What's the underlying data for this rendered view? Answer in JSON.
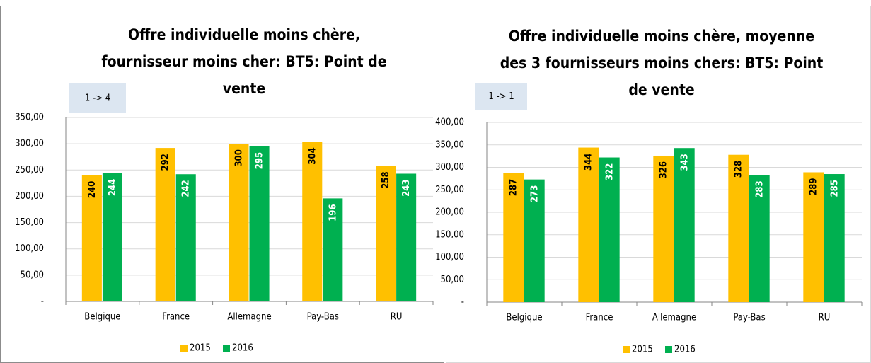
{
  "chart_data": [
    {
      "type": "bar",
      "title": [
        "Offre individuelle moins chère,",
        "fournisseur moins cher: BT5: Point de",
        "vente"
      ],
      "annotation": "1 -> 4",
      "categories": [
        "Belgique",
        "France",
        "Allemagne",
        "Pay-Bas",
        "RU"
      ],
      "series": [
        {
          "name": "2015",
          "color": "#ffc000",
          "values": [
            240,
            292,
            300,
            304,
            258
          ]
        },
        {
          "name": "2016",
          "color": "#00b050",
          "values": [
            244,
            242,
            295,
            196,
            243
          ]
        }
      ],
      "ylim": [
        0,
        350
      ],
      "yticks": [
        {
          "value": 0,
          "label": "-"
        },
        {
          "value": 50,
          "label": "50,00"
        },
        {
          "value": 100,
          "label": "100,00"
        },
        {
          "value": 150,
          "label": "150,00"
        },
        {
          "value": 200,
          "label": "200,00"
        },
        {
          "value": 250,
          "label": "250,00"
        },
        {
          "value": 300,
          "label": "300,00"
        },
        {
          "value": 350,
          "label": "350,00"
        }
      ],
      "grid": true,
      "legend": "bottom"
    },
    {
      "type": "bar",
      "title": [
        "Offre individuelle moins chère, moyenne",
        "des 3 fournisseurs moins chers: BT5: Point",
        "de vente"
      ],
      "annotation": "1 -> 1",
      "categories": [
        "Belgique",
        "France",
        "Allemagne",
        "Pay-Bas",
        "RU"
      ],
      "series": [
        {
          "name": "2015",
          "color": "#ffc000",
          "values": [
            287,
            344,
            326,
            328,
            289
          ]
        },
        {
          "name": "2016",
          "color": "#00b050",
          "values": [
            273,
            322,
            343,
            283,
            285
          ]
        }
      ],
      "ylim": [
        0,
        400
      ],
      "yticks": [
        {
          "value": 0,
          "label": "-"
        },
        {
          "value": 50,
          "label": "50,00"
        },
        {
          "value": 100,
          "label": "100,00"
        },
        {
          "value": 150,
          "label": "150,00"
        },
        {
          "value": 200,
          "label": "200,00"
        },
        {
          "value": 250,
          "label": "250,00"
        },
        {
          "value": 300,
          "label": "300,00"
        },
        {
          "value": 350,
          "label": "350,00"
        },
        {
          "value": 400,
          "label": "400,00"
        }
      ],
      "grid": true,
      "legend": "bottom"
    }
  ]
}
